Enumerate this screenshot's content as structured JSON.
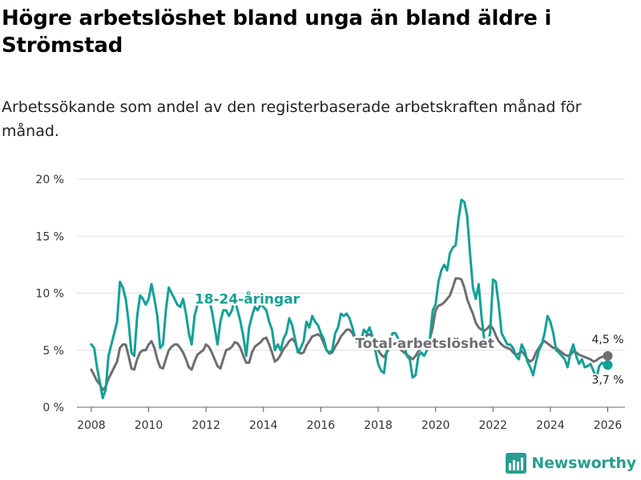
{
  "colors": {
    "youth": "#14a096",
    "total": "#6e6e72",
    "grid": "#dddddd",
    "axis": "#555555",
    "brand": "#2a9d8f"
  },
  "brand": {
    "name": "Newsworthy",
    "icon": "bar-chart-logo-icon"
  },
  "chart_data": {
    "type": "line",
    "title": "Högre arbetslöshet bland unga än bland äldre i Strömstad",
    "subtitle": "Arbetssökande som andel av den registerbaserade arbetskraften månad för månad.",
    "xlabel": "",
    "ylabel": "",
    "xlim": [
      2007.5,
      2026.6
    ],
    "ylim": [
      0,
      20
    ],
    "yticks": [
      0,
      5,
      10,
      15,
      20
    ],
    "ytick_labels": [
      "0 %",
      "5 %",
      "10 %",
      "15 %",
      "20 %"
    ],
    "xticks": [
      2008,
      2010,
      2012,
      2014,
      2016,
      2018,
      2020,
      2022,
      2024,
      2026
    ],
    "xtick_labels": [
      "2008",
      "2010",
      "2012",
      "2014",
      "2016",
      "2018",
      "2020",
      "2022",
      "2024",
      "2026"
    ],
    "grid": true,
    "series": [
      {
        "name": "18-24-åringar",
        "label": "18-24-åringar",
        "color": "#14a096",
        "end_label": "3,7 %",
        "x": [
          2008.0,
          2008.1,
          2008.2,
          2008.3,
          2008.4,
          2008.5,
          2008.6,
          2008.7,
          2008.8,
          2008.9,
          2009.0,
          2009.1,
          2009.2,
          2009.3,
          2009.4,
          2009.5,
          2009.6,
          2009.7,
          2009.8,
          2009.9,
          2010.0,
          2010.1,
          2010.2,
          2010.3,
          2010.4,
          2010.5,
          2010.6,
          2010.7,
          2010.8,
          2010.9,
          2011.0,
          2011.1,
          2011.2,
          2011.3,
          2011.4,
          2011.5,
          2011.6,
          2011.7,
          2011.8,
          2011.9,
          2012.0,
          2012.1,
          2012.2,
          2012.3,
          2012.4,
          2012.5,
          2012.6,
          2012.7,
          2012.8,
          2012.9,
          2013.0,
          2013.1,
          2013.2,
          2013.3,
          2013.4,
          2013.5,
          2013.6,
          2013.7,
          2013.8,
          2013.9,
          2014.0,
          2014.1,
          2014.2,
          2014.3,
          2014.4,
          2014.5,
          2014.6,
          2014.7,
          2014.8,
          2014.9,
          2015.0,
          2015.1,
          2015.2,
          2015.3,
          2015.4,
          2015.5,
          2015.6,
          2015.7,
          2015.8,
          2015.9,
          2016.0,
          2016.1,
          2016.2,
          2016.3,
          2016.4,
          2016.5,
          2016.6,
          2016.7,
          2016.8,
          2016.9,
          2017.0,
          2017.1,
          2017.2,
          2017.3,
          2017.4,
          2017.5,
          2017.6,
          2017.7,
          2017.8,
          2017.9,
          2018.0,
          2018.1,
          2018.2,
          2018.3,
          2018.4,
          2018.5,
          2018.6,
          2018.7,
          2018.8,
          2018.9,
          2019.0,
          2019.1,
          2019.2,
          2019.3,
          2019.4,
          2019.5,
          2019.6,
          2019.7,
          2019.8,
          2019.9,
          2020.0,
          2020.1,
          2020.2,
          2020.3,
          2020.4,
          2020.5,
          2020.6,
          2020.7,
          2020.8,
          2020.9,
          2021.0,
          2021.1,
          2021.2,
          2021.3,
          2021.4,
          2021.5,
          2021.6,
          2021.7,
          2021.8,
          2021.9,
          2022.0,
          2022.1,
          2022.2,
          2022.3,
          2022.4,
          2022.5,
          2022.6,
          2022.7,
          2022.8,
          2022.9,
          2023.0,
          2023.1,
          2023.2,
          2023.3,
          2023.4,
          2023.5,
          2023.6,
          2023.7,
          2023.8,
          2023.9,
          2024.0,
          2024.1,
          2024.2,
          2024.3,
          2024.4,
          2024.5,
          2024.6,
          2024.7,
          2024.8,
          2024.9,
          2025.0,
          2025.1,
          2025.2,
          2025.3,
          2025.4,
          2025.5,
          2025.6,
          2025.7,
          2025.8,
          2025.9,
          2026.0
        ],
        "values": [
          5.5,
          5.2,
          3.5,
          2.2,
          0.8,
          1.5,
          4.5,
          5.5,
          6.5,
          7.5,
          11.0,
          10.5,
          9.5,
          7.5,
          4.8,
          4.5,
          8.0,
          9.8,
          9.5,
          9.0,
          9.5,
          10.8,
          9.5,
          8.0,
          5.2,
          5.5,
          8.5,
          10.5,
          10.0,
          9.5,
          9.0,
          8.8,
          9.5,
          8.2,
          6.5,
          5.5,
          8.0,
          9.0,
          9.5,
          9.8,
          9.5,
          9.5,
          8.5,
          7.0,
          5.5,
          7.5,
          8.5,
          8.5,
          8.0,
          8.5,
          9.5,
          8.5,
          7.5,
          6.2,
          4.5,
          7.0,
          8.0,
          8.8,
          8.5,
          9.0,
          8.8,
          8.5,
          7.5,
          6.8,
          5.0,
          5.5,
          5.0,
          6.0,
          6.5,
          7.8,
          7.2,
          6.0,
          4.8,
          5.2,
          5.8,
          7.5,
          7.0,
          8.0,
          7.5,
          7.2,
          6.5,
          6.0,
          5.0,
          4.8,
          5.0,
          6.5,
          7.0,
          8.2,
          8.0,
          8.2,
          7.8,
          7.0,
          6.0,
          5.5,
          5.8,
          6.8,
          6.5,
          7.0,
          6.2,
          5.0,
          3.8,
          3.2,
          3.0,
          5.0,
          5.5,
          6.5,
          6.5,
          6.0,
          5.5,
          5.5,
          4.5,
          4.2,
          2.6,
          2.8,
          4.5,
          4.8,
          4.5,
          5.0,
          6.0,
          8.5,
          9.0,
          11.0,
          12.0,
          12.5,
          12.0,
          13.5,
          14.0,
          14.2,
          16.5,
          18.2,
          18.0,
          16.8,
          13.5,
          10.5,
          9.5,
          10.8,
          8.0,
          5.8,
          5.5,
          6.5,
          11.2,
          11.0,
          9.0,
          6.5,
          6.0,
          5.5,
          5.5,
          5.2,
          4.5,
          4.2,
          5.5,
          5.0,
          4.0,
          3.5,
          2.8,
          4.0,
          5.0,
          5.5,
          6.5,
          8.0,
          7.5,
          6.5,
          5.0,
          4.8,
          4.5,
          4.2,
          3.5,
          4.8,
          5.5,
          4.5,
          3.8,
          4.2,
          3.5,
          3.6,
          3.8,
          3.2,
          2.5,
          3.6,
          3.9,
          3.7,
          3.7
        ]
      },
      {
        "name": "Total arbetslöshet",
        "label": "Total arbetslöshet",
        "color": "#6e6e72",
        "end_label": "4,5 %",
        "x": [
          2008.0,
          2008.1,
          2008.2,
          2008.3,
          2008.4,
          2008.5,
          2008.6,
          2008.7,
          2008.8,
          2008.9,
          2009.0,
          2009.1,
          2009.2,
          2009.3,
          2009.4,
          2009.5,
          2009.6,
          2009.7,
          2009.8,
          2009.9,
          2010.0,
          2010.1,
          2010.2,
          2010.3,
          2010.4,
          2010.5,
          2010.6,
          2010.7,
          2010.8,
          2010.9,
          2011.0,
          2011.1,
          2011.2,
          2011.3,
          2011.4,
          2011.5,
          2011.6,
          2011.7,
          2011.8,
          2011.9,
          2012.0,
          2012.1,
          2012.2,
          2012.3,
          2012.4,
          2012.5,
          2012.6,
          2012.7,
          2012.8,
          2012.9,
          2013.0,
          2013.1,
          2013.2,
          2013.3,
          2013.4,
          2013.5,
          2013.6,
          2013.7,
          2013.8,
          2013.9,
          2014.0,
          2014.1,
          2014.2,
          2014.3,
          2014.4,
          2014.5,
          2014.6,
          2014.7,
          2014.8,
          2014.9,
          2015.0,
          2015.1,
          2015.2,
          2015.3,
          2015.4,
          2015.5,
          2015.6,
          2015.7,
          2015.8,
          2015.9,
          2016.0,
          2016.1,
          2016.2,
          2016.3,
          2016.4,
          2016.5,
          2016.6,
          2016.7,
          2016.8,
          2016.9,
          2017.0,
          2017.1,
          2017.2,
          2017.3,
          2017.4,
          2017.5,
          2017.6,
          2017.7,
          2017.8,
          2017.9,
          2018.0,
          2018.1,
          2018.2,
          2018.3,
          2018.4,
          2018.5,
          2018.6,
          2018.7,
          2018.8,
          2018.9,
          2019.0,
          2019.1,
          2019.2,
          2019.3,
          2019.4,
          2019.5,
          2019.6,
          2019.7,
          2019.8,
          2019.9,
          2020.0,
          2020.1,
          2020.2,
          2020.3,
          2020.4,
          2020.5,
          2020.6,
          2020.7,
          2020.8,
          2020.9,
          2021.0,
          2021.1,
          2021.2,
          2021.3,
          2021.4,
          2021.5,
          2021.6,
          2021.7,
          2021.8,
          2021.9,
          2022.0,
          2022.1,
          2022.2,
          2022.3,
          2022.4,
          2022.5,
          2022.6,
          2022.7,
          2022.8,
          2022.9,
          2023.0,
          2023.1,
          2023.2,
          2023.3,
          2023.4,
          2023.5,
          2023.6,
          2023.7,
          2023.8,
          2023.9,
          2024.0,
          2024.1,
          2024.2,
          2024.3,
          2024.4,
          2024.5,
          2024.6,
          2024.7,
          2024.8,
          2024.9,
          2025.0,
          2025.1,
          2025.2,
          2025.3,
          2025.4,
          2025.5,
          2025.6,
          2025.7,
          2025.8,
          2025.9,
          2026.0
        ],
        "values": [
          3.3,
          2.8,
          2.3,
          2.0,
          1.5,
          1.8,
          2.5,
          3.0,
          3.5,
          4.0,
          5.2,
          5.5,
          5.5,
          4.5,
          3.4,
          3.3,
          4.2,
          4.8,
          5.0,
          5.0,
          5.5,
          5.8,
          5.2,
          4.2,
          3.5,
          3.4,
          4.2,
          5.0,
          5.3,
          5.5,
          5.5,
          5.2,
          4.8,
          4.2,
          3.5,
          3.3,
          4.0,
          4.6,
          4.8,
          5.0,
          5.5,
          5.3,
          4.8,
          4.2,
          3.6,
          3.4,
          4.2,
          5.0,
          5.1,
          5.3,
          5.7,
          5.6,
          5.2,
          4.5,
          3.9,
          3.9,
          4.8,
          5.3,
          5.5,
          5.7,
          6.0,
          6.1,
          5.5,
          4.8,
          4.0,
          4.2,
          4.6,
          5.1,
          5.4,
          5.8,
          6.0,
          5.7,
          5.0,
          4.7,
          4.8,
          5.4,
          5.8,
          6.2,
          6.3,
          6.4,
          6.2,
          5.6,
          5.0,
          4.7,
          4.8,
          5.3,
          5.7,
          6.2,
          6.5,
          6.8,
          6.8,
          6.5,
          6.0,
          5.6,
          5.5,
          6.0,
          6.3,
          6.4,
          6.2,
          5.7,
          5.0,
          4.6,
          4.4,
          4.8,
          5.2,
          5.5,
          5.6,
          5.4,
          5.0,
          4.8,
          4.6,
          4.4,
          4.2,
          4.5,
          4.9,
          5.2,
          5.3,
          5.5,
          6.0,
          7.0,
          8.5,
          8.9,
          9.0,
          9.2,
          9.5,
          9.8,
          10.5,
          11.3,
          11.3,
          11.2,
          10.5,
          9.5,
          8.8,
          8.2,
          7.4,
          7.0,
          6.8,
          6.7,
          6.9,
          7.2,
          6.9,
          6.3,
          5.8,
          5.5,
          5.3,
          5.2,
          5.1,
          4.8,
          4.6,
          4.7,
          4.9,
          4.6,
          4.2,
          4.0,
          4.2,
          4.8,
          5.2,
          5.6,
          5.8,
          5.6,
          5.4,
          5.2,
          5.2,
          5.0,
          4.8,
          4.6,
          4.5,
          4.6,
          4.9,
          4.8,
          4.6,
          4.5,
          4.4,
          4.3,
          4.2,
          4.0,
          4.1,
          4.3,
          4.4,
          4.5,
          4.5
        ]
      }
    ]
  }
}
